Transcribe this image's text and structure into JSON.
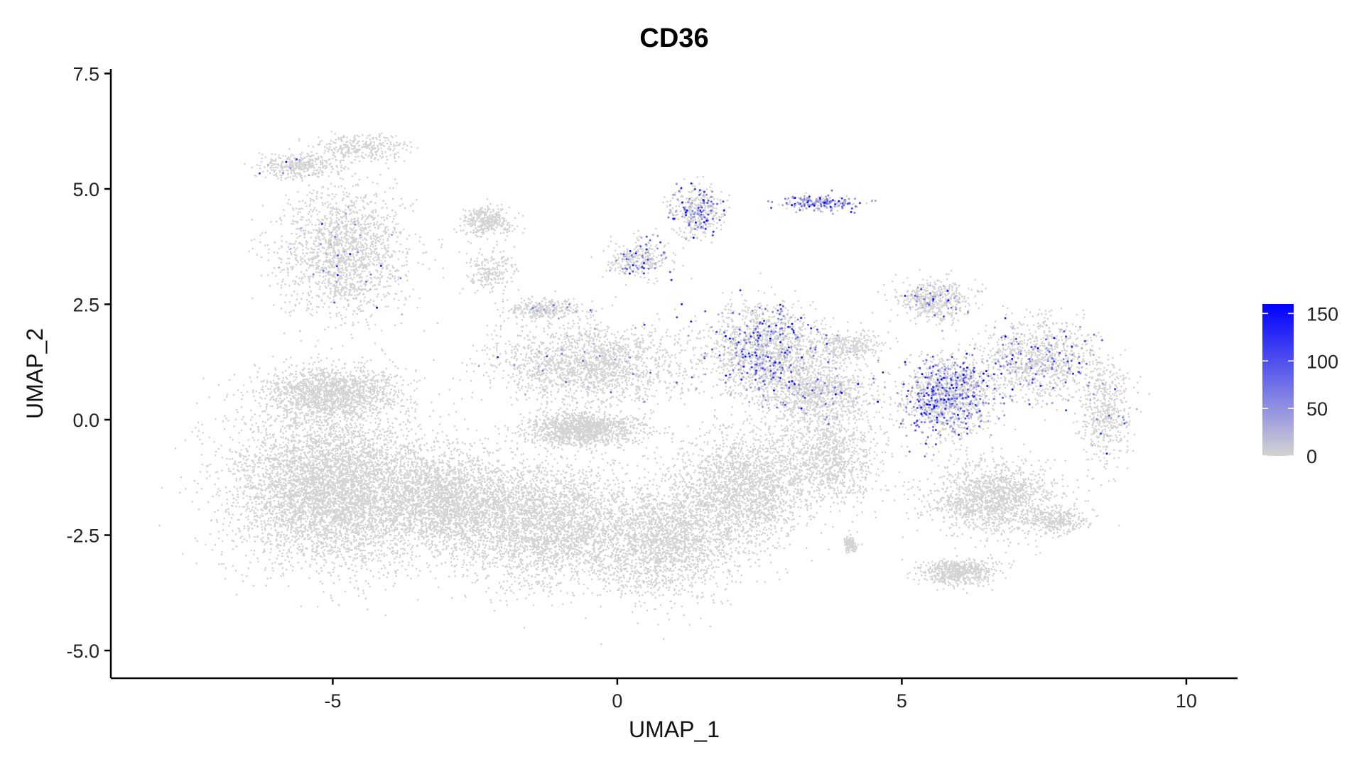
{
  "chart_data": {
    "type": "scatter",
    "title": "CD36",
    "xlabel": "UMAP_1",
    "ylabel": "UMAP_2",
    "xlim": [
      -8.9,
      10.9
    ],
    "ylim": [
      -5.6,
      7.6
    ],
    "x_ticks": [
      -5,
      0,
      5,
      10
    ],
    "x_tick_labels": [
      "-5",
      "0",
      "5",
      "10"
    ],
    "y_ticks": [
      -5.0,
      -2.5,
      0.0,
      2.5,
      5.0,
      7.5
    ],
    "y_tick_labels": [
      "-5.0",
      "-2.5",
      "0.0",
      "2.5",
      "5.0",
      "7.5"
    ],
    "grid": false,
    "point_color_low": "#d3d3d3",
    "point_color_high": "#0000ff",
    "legend": {
      "placement": "right",
      "type": "colorbar",
      "min": 0,
      "max": 160,
      "ticks": [
        0,
        50,
        100,
        150
      ],
      "tick_labels": [
        "0",
        "50",
        "100",
        "150"
      ]
    },
    "clusters": [
      {
        "cx": -5.0,
        "cy": -1.5,
        "sx": 1.6,
        "sy": 1.5,
        "n": 5200,
        "expr": 0.0
      },
      {
        "cx": -3.0,
        "cy": -1.8,
        "sx": 1.1,
        "sy": 1.0,
        "n": 2200,
        "expr": 0.0
      },
      {
        "cx": -5.0,
        "cy": 0.6,
        "sx": 1.1,
        "sy": 0.5,
        "n": 1500,
        "expr": 0.0
      },
      {
        "cx": -4.8,
        "cy": 3.6,
        "sx": 1.0,
        "sy": 1.3,
        "n": 1700,
        "expr": 0.02
      },
      {
        "cx": -5.6,
        "cy": 5.5,
        "sx": 0.6,
        "sy": 0.25,
        "n": 350,
        "expr": 0.02
      },
      {
        "cx": -4.5,
        "cy": 5.9,
        "sx": 0.7,
        "sy": 0.25,
        "n": 300,
        "expr": 0.0
      },
      {
        "cx": -2.3,
        "cy": 4.3,
        "sx": 0.4,
        "sy": 0.3,
        "n": 350,
        "expr": 0.0
      },
      {
        "cx": -2.2,
        "cy": 3.2,
        "sx": 0.4,
        "sy": 0.4,
        "n": 200,
        "expr": 0.0
      },
      {
        "cx": -0.6,
        "cy": -0.2,
        "sx": 0.9,
        "sy": 0.35,
        "n": 1300,
        "expr": 0.0
      },
      {
        "cx": -1.3,
        "cy": -2.2,
        "sx": 1.3,
        "sy": 1.2,
        "n": 2600,
        "expr": 0.0
      },
      {
        "cx": 0.8,
        "cy": -2.6,
        "sx": 1.3,
        "sy": 1.1,
        "n": 2200,
        "expr": 0.0
      },
      {
        "cx": 2.2,
        "cy": -1.5,
        "sx": 1.1,
        "sy": 1.1,
        "n": 1900,
        "expr": 0.0
      },
      {
        "cx": -0.5,
        "cy": 1.2,
        "sx": 1.6,
        "sy": 0.8,
        "n": 1800,
        "expr": 0.02
      },
      {
        "cx": -1.3,
        "cy": 2.4,
        "sx": 0.6,
        "sy": 0.2,
        "n": 300,
        "expr": 0.05
      },
      {
        "cx": 0.4,
        "cy": 3.5,
        "sx": 0.5,
        "sy": 0.4,
        "n": 300,
        "expr": 0.15
      },
      {
        "cx": 1.4,
        "cy": 4.5,
        "sx": 0.4,
        "sy": 0.5,
        "n": 400,
        "expr": 0.3
      },
      {
        "cx": 3.6,
        "cy": 4.7,
        "sx": 0.6,
        "sy": 0.15,
        "n": 220,
        "expr": 0.55
      },
      {
        "cx": 2.6,
        "cy": 1.5,
        "sx": 0.9,
        "sy": 0.9,
        "n": 1500,
        "expr": 0.18
      },
      {
        "cx": 3.5,
        "cy": 0.6,
        "sx": 0.9,
        "sy": 0.6,
        "n": 900,
        "expr": 0.05
      },
      {
        "cx": 4.0,
        "cy": 1.6,
        "sx": 0.6,
        "sy": 0.3,
        "n": 300,
        "expr": 0.02
      },
      {
        "cx": 3.7,
        "cy": -0.8,
        "sx": 0.9,
        "sy": 1.0,
        "n": 1000,
        "expr": 0.0
      },
      {
        "cx": 4.1,
        "cy": -2.7,
        "sx": 0.1,
        "sy": 0.15,
        "n": 120,
        "expr": 0.0
      },
      {
        "cx": 5.8,
        "cy": 0.5,
        "sx": 0.7,
        "sy": 0.8,
        "n": 1300,
        "expr": 0.3
      },
      {
        "cx": 7.4,
        "cy": 1.3,
        "sx": 0.9,
        "sy": 0.8,
        "n": 1000,
        "expr": 0.15
      },
      {
        "cx": 8.6,
        "cy": 0.2,
        "sx": 0.4,
        "sy": 1.0,
        "n": 500,
        "expr": 0.05
      },
      {
        "cx": 5.6,
        "cy": 2.6,
        "sx": 0.6,
        "sy": 0.4,
        "n": 500,
        "expr": 0.08
      },
      {
        "cx": 6.6,
        "cy": -1.7,
        "sx": 1.0,
        "sy": 0.7,
        "n": 1400,
        "expr": 0.0
      },
      {
        "cx": 6.0,
        "cy": -3.3,
        "sx": 0.6,
        "sy": 0.25,
        "n": 600,
        "expr": 0.0
      },
      {
        "cx": 7.7,
        "cy": -2.2,
        "sx": 0.5,
        "sy": 0.25,
        "n": 300,
        "expr": 0.0
      }
    ]
  }
}
